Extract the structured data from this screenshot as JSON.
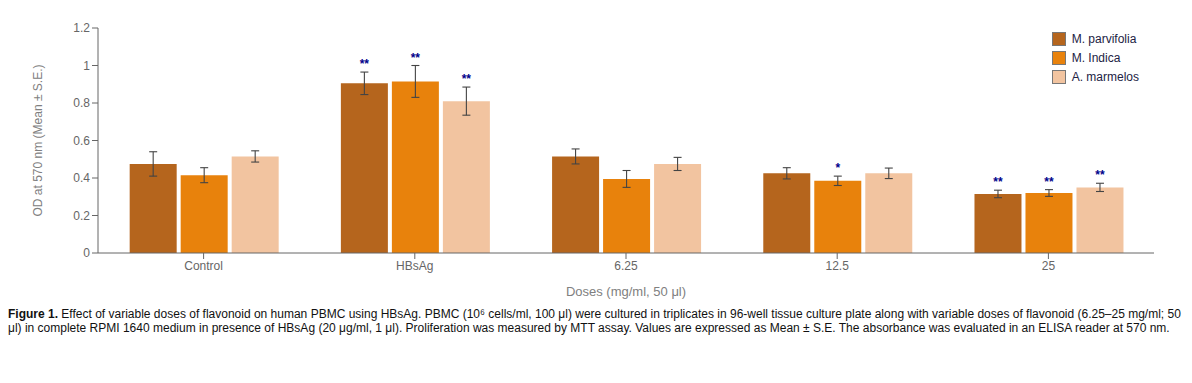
{
  "chart_data": {
    "type": "bar",
    "categories": [
      "Control",
      "HBsAg",
      "6.25",
      "12.5",
      "25"
    ],
    "xlabel": "Doses (mg/ml, 50 μl)",
    "ylabel": "OD at 570 nm (Mean ± S.E.)",
    "ylim": [
      0,
      1.2
    ],
    "yticks": [
      0,
      0.2,
      0.4,
      0.6,
      0.8,
      1,
      1.2
    ],
    "grid": false,
    "legend": "upper right",
    "series": [
      {
        "name": "M. parvifolia",
        "color": "#b5651d",
        "values": [
          0.475,
          0.905,
          0.515,
          0.425,
          0.315
        ],
        "errors": [
          0.065,
          0.06,
          0.04,
          0.03,
          0.02
        ]
      },
      {
        "name": "M. Indica",
        "color": "#e8820c",
        "values": [
          0.415,
          0.915,
          0.395,
          0.385,
          0.32
        ],
        "errors": [
          0.04,
          0.085,
          0.045,
          0.025,
          0.018
        ]
      },
      {
        "name": "A. marmelos",
        "color": "#f2c4a0",
        "values": [
          0.515,
          0.81,
          0.475,
          0.425,
          0.35
        ],
        "errors": [
          0.03,
          0.075,
          0.035,
          0.028,
          0.022
        ]
      }
    ],
    "annotations": [
      {
        "category": "HBsAg",
        "series": "M. parvifolia",
        "text": "**"
      },
      {
        "category": "HBsAg",
        "series": "M. Indica",
        "text": "**"
      },
      {
        "category": "HBsAg",
        "series": "A. marmelos",
        "text": "**"
      },
      {
        "category": "12.5",
        "series": "M. Indica",
        "text": "*"
      },
      {
        "category": "25",
        "series": "M. parvifolia",
        "text": "**"
      },
      {
        "category": "25",
        "series": "M. Indica",
        "text": "**"
      },
      {
        "category": "25",
        "series": "A. marmelos",
        "text": "**"
      }
    ],
    "caption_title": "Figure 1.",
    "caption": "Effect of variable doses of flavonoid on human PBMC using HBsAg. PBMC (10⁶ cells/ml, 100 μl) were cultured in triplicates in 96-well tissue culture plate along with variable doses of flavonoid (6.25–25 mg/ml; 50 μl) in complete RPMI 1640 medium in presence of HBsAg (20 μg/ml, 1 μl). Proliferation was measured by MTT assay. Values are expressed as Mean ± S.E. The absorbance was evaluated in an ELISA reader at 570 nm."
  }
}
